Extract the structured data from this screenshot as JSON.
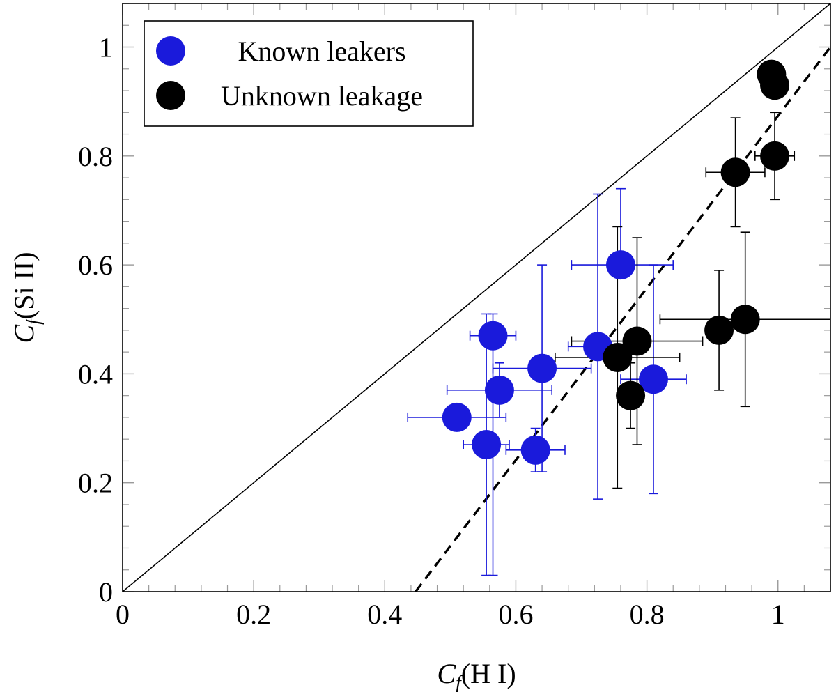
{
  "chart_data": {
    "type": "scatter",
    "title": "",
    "xlabel": "C_f(H I)",
    "ylabel": "C_f(Si II)",
    "xlabel_parts": {
      "symbol": "C",
      "sub": "f",
      "text": "(H I)"
    },
    "ylabel_parts": {
      "symbol": "C",
      "sub": "f",
      "text": "(Si II)"
    },
    "xlim": [
      0,
      1.08
    ],
    "ylim": [
      0,
      1.08
    ],
    "xticks": [
      0,
      0.2,
      0.4,
      0.6,
      0.8,
      1
    ],
    "yticks": [
      0,
      0.2,
      0.4,
      0.6,
      0.8,
      1
    ],
    "xtick_labels": [
      "0",
      "0.2",
      "0.4",
      "0.6",
      "0.8",
      "1"
    ],
    "ytick_labels": [
      "0",
      "0.2",
      "0.4",
      "0.6",
      "0.8",
      "1"
    ],
    "minor_tick_step": 0.04,
    "legend_position": "top-left",
    "lines": [
      {
        "name": "one-to-one",
        "style": "solid",
        "points": [
          [
            0,
            0
          ],
          [
            1.08,
            1.08
          ]
        ]
      },
      {
        "name": "fit",
        "style": "dashed",
        "points": [
          [
            0.447,
            0
          ],
          [
            1.08,
            1.0
          ]
        ]
      }
    ],
    "series": [
      {
        "name": "Known leakers",
        "color": "#1a1adb",
        "points": [
          {
            "x": 0.76,
            "y": 0.6,
            "xerr": [
              0.075,
              0.08
            ],
            "yerr": [
              0.0,
              0.14
            ]
          },
          {
            "x": 0.565,
            "y": 0.47,
            "xerr": [
              0.035,
              0.035
            ],
            "yerr": [
              0.44,
              0.04
            ]
          },
          {
            "x": 0.64,
            "y": 0.41,
            "xerr": [
              0.075,
              0.075
            ],
            "yerr": [
              0.19,
              0.19
            ]
          },
          {
            "x": 0.575,
            "y": 0.37,
            "xerr": [
              0.08,
              0.08
            ],
            "yerr": [
              0.05,
              0.05
            ]
          },
          {
            "x": 0.51,
            "y": 0.32,
            "xerr": [
              0.075,
              0.075
            ],
            "yerr": [
              0.0,
              0.0
            ]
          },
          {
            "x": 0.555,
            "y": 0.27,
            "xerr": [
              0.035,
              0.035
            ],
            "yerr": [
              0.24,
              0.24
            ]
          },
          {
            "x": 0.63,
            "y": 0.26,
            "xerr": [
              0.045,
              0.045
            ],
            "yerr": [
              0.04,
              0.04
            ]
          },
          {
            "x": 0.725,
            "y": 0.45,
            "xerr": [
              0.045,
              0.045
            ],
            "yerr": [
              0.28,
              0.28
            ]
          },
          {
            "x": 0.81,
            "y": 0.39,
            "xerr": [
              0.05,
              0.05
            ],
            "yerr": [
              0.21,
              0.21
            ]
          }
        ]
      },
      {
        "name": "Unknown leakage",
        "color": "#000000",
        "points": [
          {
            "x": 0.99,
            "y": 0.95,
            "xerr": [
              0.015,
              0.015
            ],
            "yerr": [
              0.0,
              0.0
            ]
          },
          {
            "x": 0.995,
            "y": 0.93,
            "xerr": [
              0.0,
              0.0
            ],
            "yerr": [
              0.0,
              0.0
            ]
          },
          {
            "x": 0.995,
            "y": 0.8,
            "xerr": [
              0.03,
              0.03
            ],
            "yerr": [
              0.08,
              0.08
            ]
          },
          {
            "x": 0.935,
            "y": 0.77,
            "xerr": [
              0.045,
              0.045
            ],
            "yerr": [
              0.1,
              0.1
            ]
          },
          {
            "x": 0.91,
            "y": 0.48,
            "xerr": [
              0.0,
              0.0
            ],
            "yerr": [
              0.11,
              0.11
            ]
          },
          {
            "x": 0.95,
            "y": 0.5,
            "xerr": [
              0.13,
              0.13
            ],
            "yerr": [
              0.16,
              0.16
            ]
          },
          {
            "x": 0.785,
            "y": 0.46,
            "xerr": [
              0.1,
              0.1
            ],
            "yerr": [
              0.19,
              0.19
            ]
          },
          {
            "x": 0.755,
            "y": 0.43,
            "xerr": [
              0.095,
              0.095
            ],
            "yerr": [
              0.24,
              0.24
            ]
          },
          {
            "x": 0.775,
            "y": 0.36,
            "xerr": [
              0.02,
              0.02
            ],
            "yerr": [
              0.06,
              0.06
            ]
          }
        ]
      }
    ]
  }
}
